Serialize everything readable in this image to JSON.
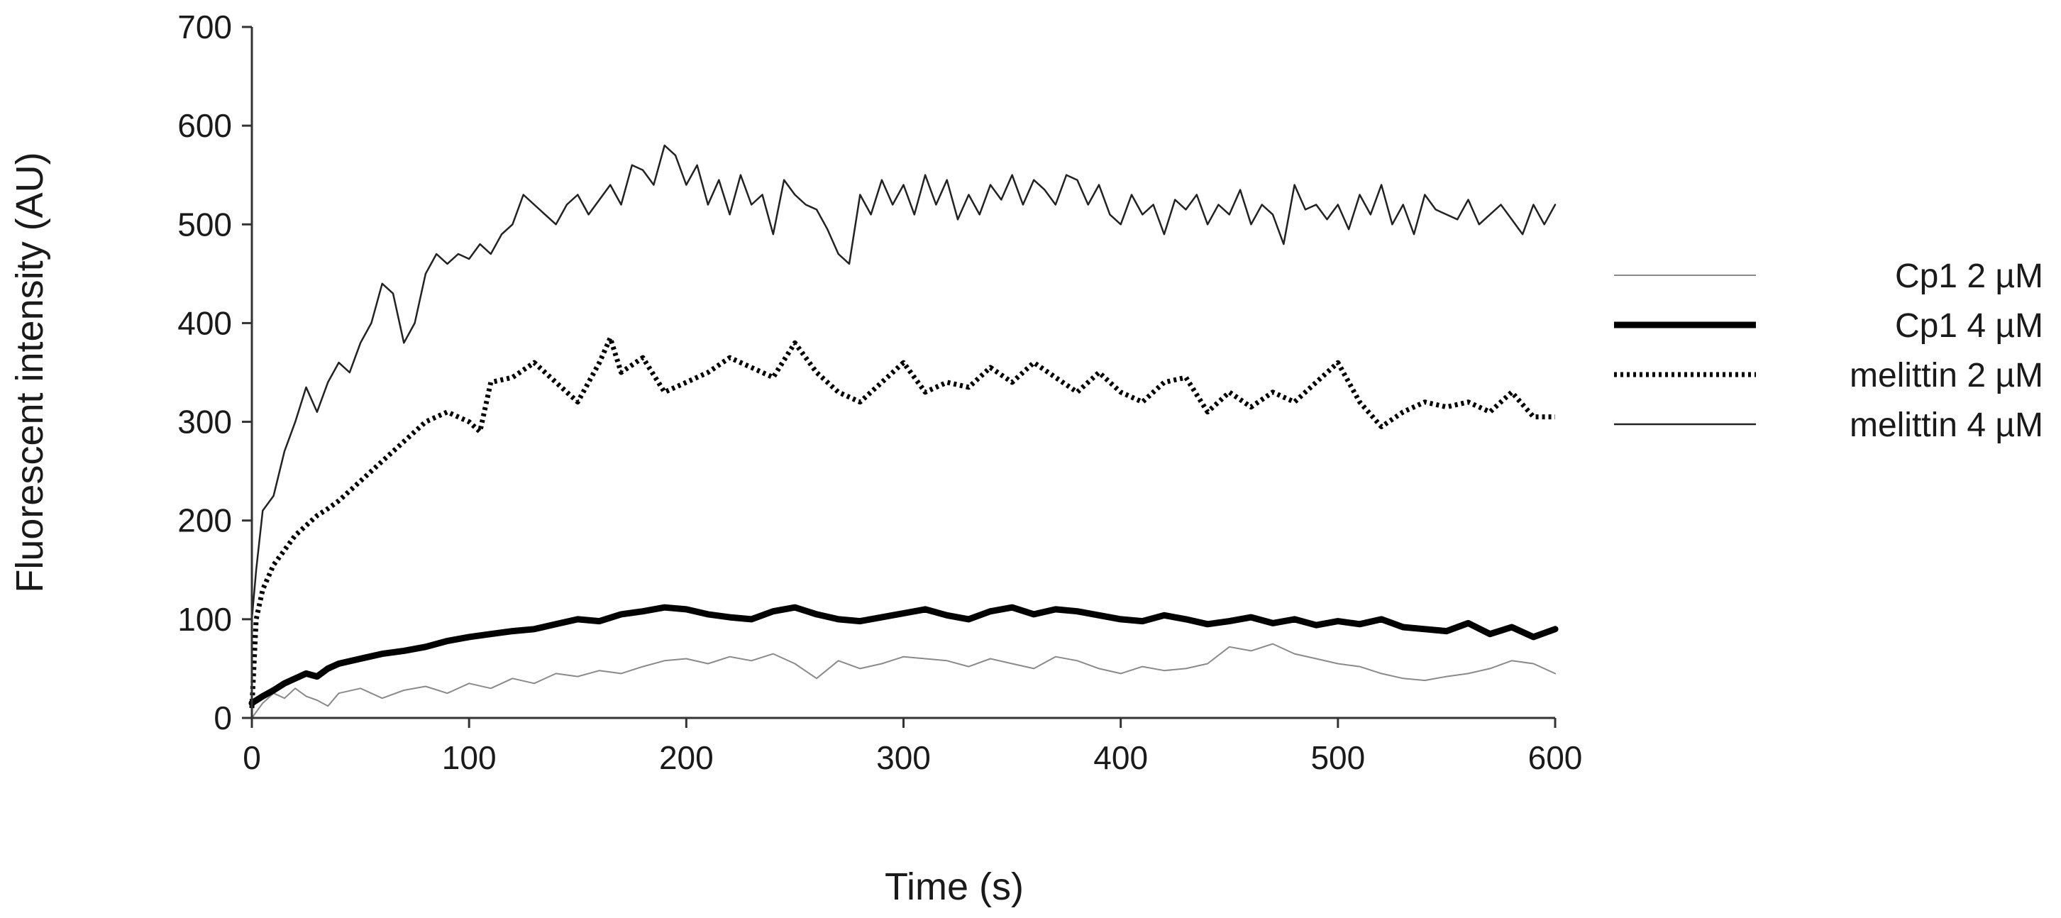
{
  "chart_data": {
    "type": "line",
    "title": "",
    "xlabel": "Time (s)",
    "ylabel": "Fluorescent intensity (AU)",
    "xlim": [
      0,
      600
    ],
    "ylim": [
      0,
      700
    ],
    "xticks": [
      "0",
      "100",
      "200",
      "300",
      "400",
      "500",
      "600"
    ],
    "yticks": [
      "0",
      "100",
      "200",
      "300",
      "400",
      "500",
      "600",
      "700"
    ],
    "grid": false,
    "legend_position": "right",
    "series": [
      {
        "name": "Cp1 2 µM",
        "style": "thin-gray-solid",
        "color": "#8a8a8a",
        "x": [
          0,
          5,
          10,
          15,
          20,
          25,
          30,
          35,
          40,
          50,
          60,
          70,
          80,
          90,
          100,
          110,
          120,
          130,
          140,
          150,
          160,
          170,
          180,
          190,
          200,
          210,
          220,
          230,
          240,
          250,
          260,
          270,
          280,
          290,
          300,
          310,
          320,
          330,
          340,
          350,
          360,
          370,
          380,
          390,
          400,
          410,
          420,
          430,
          440,
          450,
          460,
          470,
          480,
          490,
          500,
          510,
          520,
          530,
          540,
          550,
          560,
          570,
          580,
          590,
          600
        ],
        "values": [
          0,
          15,
          25,
          20,
          30,
          22,
          18,
          12,
          25,
          30,
          20,
          28,
          32,
          25,
          35,
          30,
          40,
          35,
          45,
          42,
          48,
          45,
          52,
          58,
          60,
          55,
          62,
          58,
          65,
          55,
          40,
          58,
          50,
          55,
          62,
          60,
          58,
          52,
          60,
          55,
          50,
          62,
          58,
          50,
          45,
          52,
          48,
          50,
          55,
          72,
          68,
          75,
          65,
          60,
          55,
          52,
          45,
          40,
          38,
          42,
          45,
          50,
          58,
          55,
          45
        ]
      },
      {
        "name": "Cp1 4 µM",
        "style": "thick-black-solid",
        "color": "#000000",
        "x": [
          0,
          5,
          10,
          15,
          20,
          25,
          30,
          35,
          40,
          50,
          60,
          70,
          80,
          90,
          100,
          110,
          120,
          130,
          140,
          150,
          160,
          170,
          180,
          190,
          200,
          210,
          220,
          230,
          240,
          250,
          260,
          270,
          280,
          290,
          300,
          310,
          320,
          330,
          340,
          350,
          360,
          370,
          380,
          390,
          400,
          410,
          420,
          430,
          440,
          450,
          460,
          470,
          480,
          490,
          500,
          510,
          520,
          530,
          540,
          550,
          560,
          570,
          580,
          590,
          600
        ],
        "values": [
          15,
          22,
          28,
          35,
          40,
          45,
          42,
          50,
          55,
          60,
          65,
          68,
          72,
          78,
          82,
          85,
          88,
          90,
          95,
          100,
          98,
          105,
          108,
          112,
          110,
          105,
          102,
          100,
          108,
          112,
          105,
          100,
          98,
          102,
          106,
          110,
          104,
          100,
          108,
          112,
          105,
          110,
          108,
          104,
          100,
          98,
          104,
          100,
          95,
          98,
          102,
          96,
          100,
          94,
          98,
          95,
          100,
          92,
          90,
          88,
          96,
          85,
          92,
          82,
          90
        ]
      },
      {
        "name": "melittin 2 µM",
        "style": "dotted-black",
        "color": "#000000",
        "x": [
          0,
          2,
          5,
          10,
          15,
          20,
          25,
          30,
          35,
          40,
          50,
          60,
          70,
          80,
          90,
          100,
          105,
          110,
          120,
          130,
          140,
          150,
          160,
          165,
          170,
          180,
          190,
          200,
          210,
          220,
          230,
          240,
          250,
          260,
          270,
          280,
          290,
          300,
          310,
          320,
          330,
          340,
          350,
          360,
          370,
          380,
          390,
          400,
          410,
          420,
          430,
          440,
          450,
          460,
          470,
          480,
          490,
          500,
          510,
          520,
          530,
          540,
          550,
          560,
          570,
          580,
          590,
          600
        ],
        "values": [
          10,
          100,
          130,
          155,
          170,
          185,
          195,
          205,
          212,
          220,
          240,
          260,
          280,
          300,
          310,
          300,
          290,
          340,
          345,
          360,
          340,
          320,
          360,
          385,
          350,
          365,
          330,
          340,
          350,
          365,
          355,
          345,
          380,
          350,
          330,
          320,
          340,
          360,
          330,
          340,
          335,
          355,
          340,
          360,
          345,
          330,
          350,
          330,
          320,
          340,
          345,
          310,
          330,
          315,
          330,
          320,
          340,
          360,
          320,
          295,
          310,
          320,
          315,
          320,
          310,
          330,
          305,
          305
        ]
      },
      {
        "name": "melittin 4 µM",
        "style": "thin-black-solid",
        "color": "#222222",
        "x": [
          0,
          2,
          5,
          10,
          15,
          20,
          25,
          30,
          35,
          40,
          45,
          50,
          55,
          60,
          65,
          70,
          75,
          80,
          85,
          90,
          95,
          100,
          105,
          110,
          115,
          120,
          125,
          130,
          135,
          140,
          145,
          150,
          155,
          160,
          165,
          170,
          175,
          180,
          185,
          190,
          195,
          200,
          205,
          210,
          215,
          220,
          225,
          230,
          235,
          240,
          245,
          250,
          255,
          260,
          265,
          270,
          275,
          280,
          285,
          290,
          295,
          300,
          305,
          310,
          315,
          320,
          325,
          330,
          335,
          340,
          345,
          350,
          355,
          360,
          365,
          370,
          375,
          380,
          385,
          390,
          395,
          400,
          405,
          410,
          415,
          420,
          425,
          430,
          435,
          440,
          445,
          450,
          455,
          460,
          465,
          470,
          475,
          480,
          485,
          490,
          495,
          500,
          505,
          510,
          515,
          520,
          525,
          530,
          535,
          540,
          545,
          550,
          555,
          560,
          565,
          570,
          575,
          580,
          585,
          590,
          595,
          600
        ],
        "values": [
          100,
          150,
          210,
          225,
          270,
          300,
          335,
          310,
          340,
          360,
          350,
          380,
          400,
          440,
          430,
          380,
          400,
          450,
          470,
          460,
          470,
          465,
          480,
          470,
          490,
          500,
          530,
          520,
          510,
          500,
          520,
          530,
          510,
          525,
          540,
          520,
          560,
          555,
          540,
          580,
          570,
          540,
          560,
          520,
          545,
          510,
          550,
          520,
          530,
          490,
          545,
          530,
          520,
          515,
          495,
          470,
          460,
          530,
          510,
          545,
          520,
          540,
          510,
          550,
          520,
          545,
          505,
          530,
          510,
          540,
          525,
          550,
          520,
          545,
          535,
          520,
          550,
          545,
          520,
          540,
          510,
          500,
          530,
          510,
          520,
          490,
          525,
          515,
          530,
          500,
          520,
          510,
          535,
          500,
          520,
          510,
          480,
          540,
          515,
          520,
          505,
          520,
          495,
          530,
          510,
          540,
          500,
          520,
          490,
          530,
          515,
          510,
          505,
          525,
          500,
          510,
          520,
          505,
          490,
          520,
          500,
          520
        ]
      }
    ]
  }
}
